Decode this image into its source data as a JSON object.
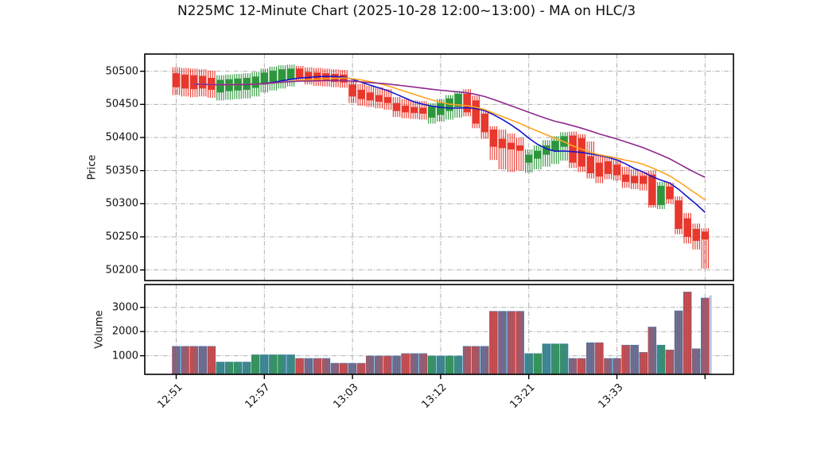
{
  "title": "N225MC 12-Minute Chart (2025-10-28 12:00~13:00) - MA on HLC/3",
  "style": {
    "up_color": "#2d963c",
    "down_color": "#e8372c",
    "volume_bar_fill": "#4682b4",
    "partial_bar_color": "#b7c6e6",
    "grid_color": "#b0b0b0",
    "frame_color": "#000000",
    "text_color": "#111111"
  },
  "chart_data": {
    "type": "candlestick+volume",
    "title": "N225MC 12-Minute Chart (2025-10-28 12:00~13:00) - MA on HLC/3",
    "price_axis": {
      "label": "Price",
      "ticks": [
        50200,
        50250,
        50300,
        50350,
        50400,
        50450,
        50500
      ],
      "ylim": [
        50184,
        50526
      ]
    },
    "volume_axis": {
      "label": "Volume",
      "ticks": [
        1000,
        2000,
        3000
      ],
      "ylim": [
        230,
        3947
      ]
    },
    "x_axis": {
      "tick_indices": [
        0,
        10,
        20,
        30,
        40,
        50,
        60
      ],
      "tick_labels": [
        "12:51",
        "12:57",
        "13:03",
        "13:12",
        "13:21",
        "13:33",
        ""
      ],
      "grid": true
    },
    "ma": {
      "source": "HLC/3",
      "periods": [
        8,
        12,
        24
      ],
      "colors": [
        "#1414c8",
        "#ffa420",
        "#8e2a8e"
      ]
    },
    "candles": {
      "open": [
        50497,
        50495,
        50494,
        50493,
        50490,
        50468,
        50470,
        50471,
        50472,
        50475,
        50480,
        50484,
        50486,
        50488,
        50504,
        50499,
        50498,
        50497,
        50496,
        50495,
        50480,
        50472,
        50468,
        50464,
        50461,
        50452,
        50448,
        50446,
        50445,
        50430,
        50434,
        50440,
        50446,
        50466,
        50456,
        50436,
        50412,
        50398,
        50392,
        50388,
        50362,
        50368,
        50374,
        50380,
        50386,
        50403,
        50399,
        50372,
        50362,
        50364,
        50359,
        50344,
        50342,
        50342,
        50344,
        50298,
        50326,
        50305,
        50278,
        50262,
        50258
      ],
      "high": [
        50506,
        50505,
        50504,
        50503,
        50501,
        50494,
        50495,
        50496,
        50497,
        50499,
        50504,
        50507,
        50509,
        50510,
        50508,
        50506,
        50505,
        50504,
        50503,
        50502,
        50486,
        50481,
        50478,
        50476,
        50473,
        50461,
        50458,
        50456,
        50455,
        50452,
        50458,
        50464,
        50470,
        50473,
        50463,
        50441,
        50417,
        50412,
        50406,
        50400,
        50382,
        50388,
        50396,
        50402,
        50408,
        50409,
        50405,
        50394,
        50374,
        50372,
        50367,
        50356,
        50352,
        50348,
        50350,
        50333,
        50332,
        50311,
        50286,
        50270,
        50263
      ],
      "low": [
        50464,
        50462,
        50461,
        50462,
        50460,
        50456,
        50457,
        50458,
        50459,
        50462,
        50468,
        50471,
        50474,
        50477,
        50486,
        50480,
        50478,
        50477,
        50476,
        50475,
        50452,
        50448,
        50446,
        50444,
        50442,
        50431,
        50429,
        50428,
        50427,
        50421,
        50424,
        50427,
        50430,
        50432,
        50414,
        50398,
        50366,
        50352,
        50348,
        50350,
        50347,
        50352,
        50356,
        50360,
        50365,
        50354,
        50348,
        50338,
        50331,
        50337,
        50335,
        50324,
        50322,
        50320,
        50294,
        50292,
        50300,
        50254,
        50240,
        50231,
        50202
      ],
      "close": [
        50476,
        50474,
        50473,
        50474,
        50472,
        50487,
        50488,
        50489,
        50490,
        50492,
        50498,
        50501,
        50503,
        50504,
        50490,
        50486,
        50485,
        50486,
        50484,
        50483,
        50462,
        50458,
        50456,
        50454,
        50452,
        50440,
        50438,
        50437,
        50436,
        50447,
        50452,
        50459,
        50466,
        50438,
        50421,
        50408,
        50386,
        50384,
        50382,
        50380,
        50374,
        50380,
        50388,
        50395,
        50402,
        50362,
        50356,
        50346,
        50341,
        50345,
        50343,
        50333,
        50331,
        50330,
        50298,
        50327,
        50307,
        50262,
        50250,
        50244,
        50246
      ],
      "volume": [
        1400,
        1400,
        1400,
        1400,
        1400,
        750,
        750,
        750,
        750,
        1050,
        1050,
        1050,
        1050,
        1050,
        900,
        900,
        900,
        900,
        700,
        700,
        700,
        700,
        1000,
        1000,
        1000,
        1000,
        1100,
        1100,
        1100,
        1000,
        1000,
        1000,
        1000,
        1400,
        1400,
        1400,
        2850,
        2850,
        2850,
        2850,
        1100,
        1100,
        1500,
        1500,
        1500,
        900,
        900,
        1550,
        1550,
        900,
        900,
        1450,
        1450,
        1150,
        2200,
        1450,
        1250,
        2870,
        3650,
        1300,
        3400
      ]
    },
    "partial_last_bar": {
      "volume": 3500
    }
  }
}
